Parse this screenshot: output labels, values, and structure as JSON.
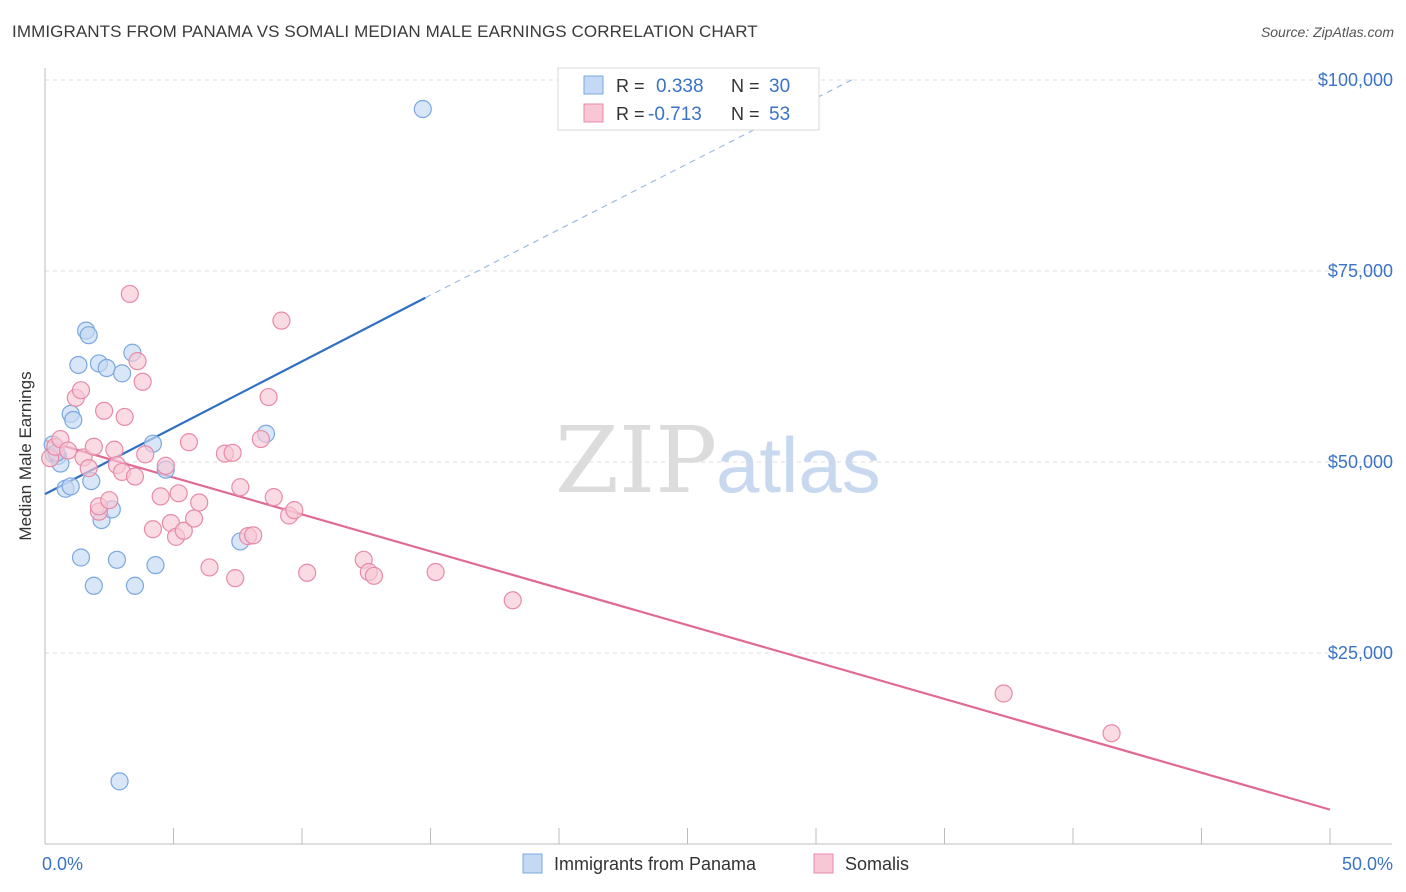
{
  "header": {
    "title": "IMMIGRANTS FROM PANAMA VS SOMALI MEDIAN MALE EARNINGS CORRELATION CHART",
    "source": "Source: ZipAtlas.com"
  },
  "watermark": {
    "zip": "ZIP",
    "atlas": "atlas"
  },
  "legend": {
    "rows": [
      {
        "r_label": "R =",
        "r_value": "0.338",
        "n_label": "N =",
        "n_value": "30"
      },
      {
        "r_label": "R =",
        "r_value": "-0.713",
        "n_label": "N =",
        "n_value": "53"
      }
    ]
  },
  "chart_data": {
    "type": "scatter",
    "ylabel": "Median Male Earnings",
    "xlim": [
      0,
      50
    ],
    "ylim": [
      0,
      105000
    ],
    "x_tick_labels": [
      "0.0%",
      "50.0%"
    ],
    "y_ticks": [
      {
        "value": 25000,
        "label": "$25,000"
      },
      {
        "value": 50000,
        "label": "$50,000"
      },
      {
        "value": 75000,
        "label": "$75,000"
      },
      {
        "value": 100000,
        "label": "$100,000"
      }
    ],
    "grid": true,
    "legend_position": "top-center",
    "series": [
      {
        "name": "Immigrants from Panama",
        "color": "#7aa8e0",
        "fill": "#c4d9f3",
        "trend": {
          "x0": 0,
          "y0": 45800,
          "x1": 14.8,
          "y1": 71500,
          "dash_to_x": 31.5,
          "dash_to_y": 100200,
          "color": "#2f6fc4"
        },
        "points": [
          [
            0.3,
            52300
          ],
          [
            0.35,
            51000
          ],
          [
            0.5,
            50800
          ],
          [
            0.6,
            49800
          ],
          [
            0.8,
            46500
          ],
          [
            1.0,
            46800
          ],
          [
            1.0,
            56300
          ],
          [
            1.1,
            55500
          ],
          [
            1.3,
            62700
          ],
          [
            1.4,
            37500
          ],
          [
            1.6,
            67200
          ],
          [
            1.7,
            66600
          ],
          [
            1.8,
            47500
          ],
          [
            1.9,
            33800
          ],
          [
            2.1,
            62900
          ],
          [
            2.2,
            42400
          ],
          [
            2.4,
            62300
          ],
          [
            2.6,
            43800
          ],
          [
            2.8,
            37200
          ],
          [
            2.9,
            8200
          ],
          [
            3.0,
            61600
          ],
          [
            3.4,
            64300
          ],
          [
            3.5,
            33800
          ],
          [
            4.2,
            52400
          ],
          [
            4.3,
            36500
          ],
          [
            4.7,
            49000
          ],
          [
            7.6,
            39600
          ],
          [
            8.6,
            53700
          ],
          [
            14.7,
            96200
          ],
          [
            0.45,
            51200
          ]
        ]
      },
      {
        "name": "Somalis",
        "color": "#e88aa8",
        "fill": "#f7c7d6",
        "trend": {
          "x0": 0,
          "y0": 52800,
          "x1": 50,
          "y1": 4500,
          "color": "#e06a94"
        },
        "points": [
          [
            0.2,
            50500
          ],
          [
            0.4,
            52000
          ],
          [
            0.6,
            53000
          ],
          [
            0.9,
            51500
          ],
          [
            1.2,
            58400
          ],
          [
            1.4,
            59400
          ],
          [
            1.5,
            50600
          ],
          [
            1.7,
            49200
          ],
          [
            1.9,
            52000
          ],
          [
            2.1,
            43500
          ],
          [
            2.1,
            44200
          ],
          [
            2.3,
            56700
          ],
          [
            2.5,
            45000
          ],
          [
            2.7,
            51600
          ],
          [
            2.8,
            49600
          ],
          [
            3.0,
            48700
          ],
          [
            3.1,
            55900
          ],
          [
            3.3,
            72000
          ],
          [
            3.5,
            48100
          ],
          [
            3.6,
            63200
          ],
          [
            3.8,
            60500
          ],
          [
            3.9,
            51000
          ],
          [
            4.2,
            41200
          ],
          [
            4.5,
            45500
          ],
          [
            4.7,
            49500
          ],
          [
            4.9,
            42000
          ],
          [
            5.1,
            40200
          ],
          [
            5.2,
            45900
          ],
          [
            5.4,
            41000
          ],
          [
            5.6,
            52600
          ],
          [
            5.8,
            42600
          ],
          [
            6.0,
            44700
          ],
          [
            6.4,
            36200
          ],
          [
            7.0,
            51100
          ],
          [
            7.3,
            51200
          ],
          [
            7.4,
            34800
          ],
          [
            7.6,
            46700
          ],
          [
            7.9,
            40300
          ],
          [
            8.1,
            40400
          ],
          [
            8.4,
            53000
          ],
          [
            8.7,
            58500
          ],
          [
            8.9,
            45400
          ],
          [
            9.2,
            68500
          ],
          [
            9.5,
            43000
          ],
          [
            9.7,
            43700
          ],
          [
            10.2,
            35500
          ],
          [
            12.4,
            37200
          ],
          [
            12.6,
            35600
          ],
          [
            12.8,
            35100
          ],
          [
            15.2,
            35600
          ],
          [
            18.2,
            31900
          ],
          [
            37.3,
            19700
          ],
          [
            41.5,
            14500
          ]
        ]
      }
    ]
  }
}
